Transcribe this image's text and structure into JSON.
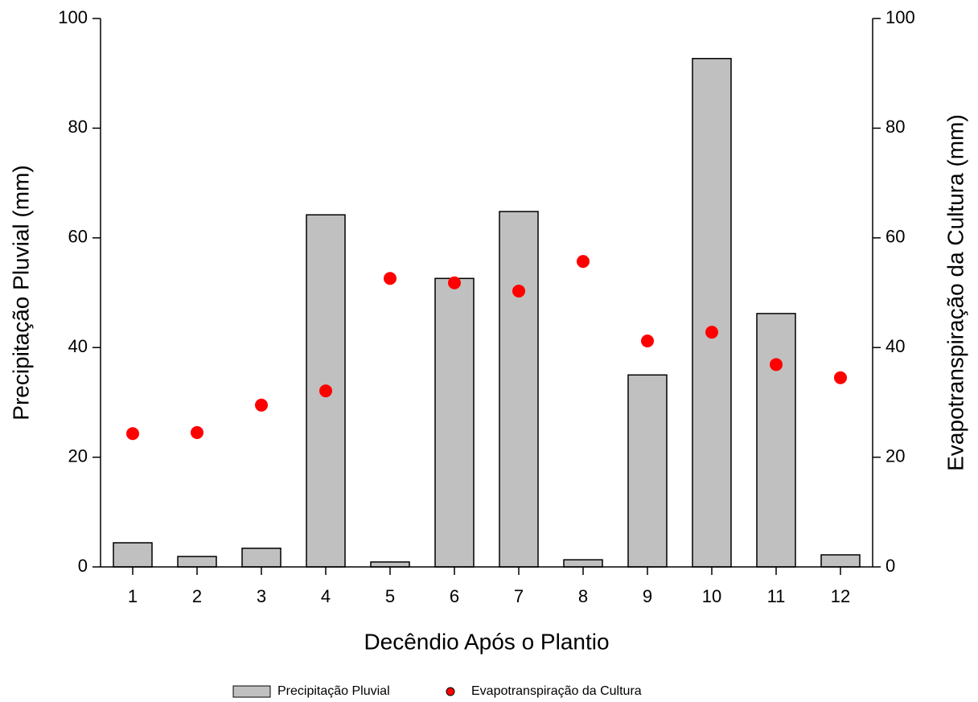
{
  "chart_data": {
    "type": "bar",
    "x_label": "Decêndio Após o Plantio",
    "y_label": "Precipitação Pluvial (mm)",
    "y2_label": "Evapotranspiração da Cultura (mm)",
    "categories": [
      "1",
      "2",
      "3",
      "4",
      "5",
      "6",
      "7",
      "8",
      "9",
      "10",
      "11",
      "12"
    ],
    "series": [
      {
        "name": "Precipitação Pluvial",
        "type": "bar",
        "color": "#c0c0c0",
        "values": [
          4.4,
          1.9,
          3.4,
          64.2,
          0.9,
          52.6,
          64.8,
          1.3,
          35.0,
          92.7,
          46.2,
          2.2
        ]
      },
      {
        "name": "Evapotranspiração da Cultura",
        "type": "scatter",
        "axis": "y2",
        "color": "#ff0000",
        "values": [
          24.3,
          24.5,
          29.5,
          32.1,
          52.6,
          51.8,
          50.3,
          55.7,
          41.2,
          42.8,
          36.9,
          34.5
        ]
      }
    ],
    "ylim": [
      0,
      100
    ],
    "yticks": [
      0,
      20,
      40,
      60,
      80,
      100
    ],
    "y2lim": [
      0,
      100
    ],
    "y2ticks": [
      0,
      20,
      40,
      60,
      80,
      100
    ],
    "grid": false,
    "legend": "bottom"
  }
}
